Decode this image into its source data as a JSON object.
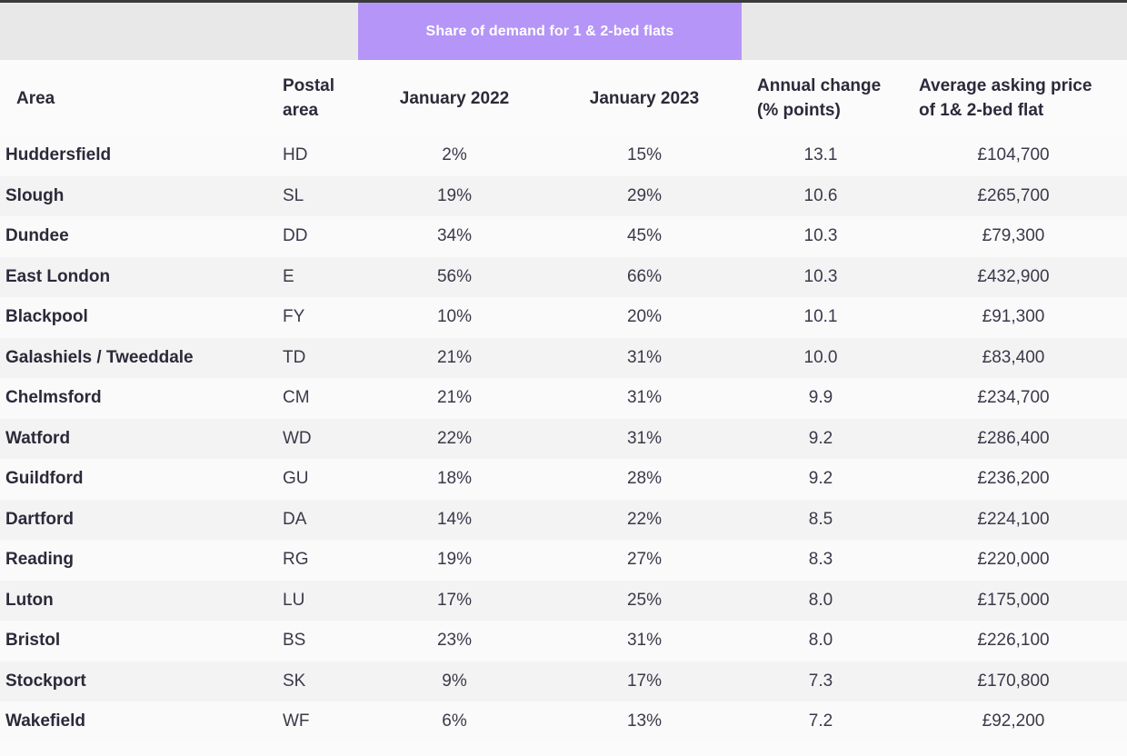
{
  "table": {
    "group_header": "Share of demand for 1 & 2-bed flats",
    "columns": {
      "area": "Area",
      "postal_line1": "Postal",
      "postal_line2": "area",
      "jan2022": "January 2022",
      "jan2023": "January 2023",
      "annual_line1": "Annual change",
      "annual_line2": "(% points)",
      "avg_line1": "Average asking price",
      "avg_line2": "of 1& 2-bed flat"
    },
    "rows": [
      {
        "area": "Huddersfield",
        "postal": "HD",
        "jan2022": "2%",
        "jan2023": "15%",
        "annual": "13.1",
        "avg": "£104,700"
      },
      {
        "area": "Slough",
        "postal": "SL",
        "jan2022": "19%",
        "jan2023": "29%",
        "annual": "10.6",
        "avg": "£265,700"
      },
      {
        "area": "Dundee",
        "postal": "DD",
        "jan2022": "34%",
        "jan2023": "45%",
        "annual": "10.3",
        "avg": "£79,300"
      },
      {
        "area": "East London",
        "postal": "E",
        "jan2022": "56%",
        "jan2023": "66%",
        "annual": "10.3",
        "avg": "£432,900"
      },
      {
        "area": "Blackpool",
        "postal": "FY",
        "jan2022": "10%",
        "jan2023": "20%",
        "annual": "10.1",
        "avg": "£91,300"
      },
      {
        "area": "Galashiels / Tweeddale",
        "postal": "TD",
        "jan2022": "21%",
        "jan2023": "31%",
        "annual": "10.0",
        "avg": "£83,400"
      },
      {
        "area": "Chelmsford",
        "postal": "CM",
        "jan2022": "21%",
        "jan2023": "31%",
        "annual": "9.9",
        "avg": "£234,700"
      },
      {
        "area": "Watford",
        "postal": "WD",
        "jan2022": "22%",
        "jan2023": "31%",
        "annual": "9.2",
        "avg": "£286,400"
      },
      {
        "area": "Guildford",
        "postal": "GU",
        "jan2022": "18%",
        "jan2023": "28%",
        "annual": "9.2",
        "avg": "£236,200"
      },
      {
        "area": "Dartford",
        "postal": "DA",
        "jan2022": "14%",
        "jan2023": "22%",
        "annual": "8.5",
        "avg": "£224,100"
      },
      {
        "area": "Reading",
        "postal": "RG",
        "jan2022": "19%",
        "jan2023": "27%",
        "annual": "8.3",
        "avg": "£220,000"
      },
      {
        "area": "Luton",
        "postal": "LU",
        "jan2022": "17%",
        "jan2023": "25%",
        "annual": "8.0",
        "avg": "£175,000"
      },
      {
        "area": "Bristol",
        "postal": "BS",
        "jan2022": "23%",
        "jan2023": "31%",
        "annual": "8.0",
        "avg": "£226,100"
      },
      {
        "area": "Stockport",
        "postal": "SK",
        "jan2022": "9%",
        "jan2023": "17%",
        "annual": "7.3",
        "avg": "£170,800"
      },
      {
        "area": "Wakefield",
        "postal": "WF",
        "jan2022": "6%",
        "jan2023": "13%",
        "annual": "7.2",
        "avg": "£92,200"
      }
    ]
  },
  "colors": {
    "accent": "#b595f7",
    "header_band": "#e9e8e8",
    "text": "#2b2a3a"
  }
}
